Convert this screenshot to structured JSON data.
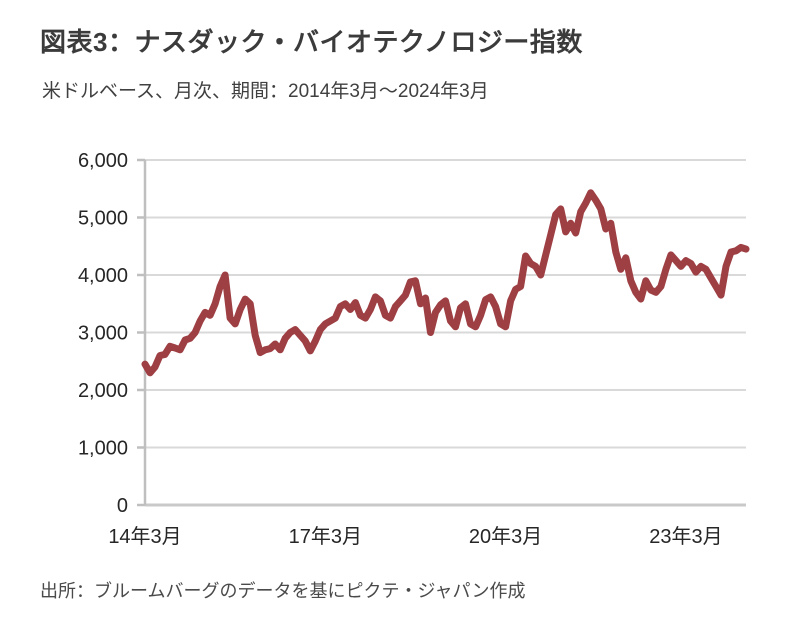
{
  "title": "図表3：ナスダック・バイオテクノロジー指数",
  "subtitle": "米ドルベース、月次、期間：2014年3月～2024年3月",
  "source": "出所：ブルームバーグのデータを基にピクテ・ジャパン作成",
  "chart_data": {
    "type": "line",
    "title": "ナスダック・バイオテクノロジー指数",
    "series_name": "ナスダック・バイオテクノロジー指数（米ドルベース）",
    "x_start": "2014-03",
    "x_end": "2024-03",
    "frequency": "monthly",
    "ylim": [
      0,
      6000
    ],
    "y_ticks": [
      0,
      1000,
      2000,
      3000,
      4000,
      5000,
      6000
    ],
    "y_tick_labels": [
      "0",
      "1,000",
      "2,000",
      "3,000",
      "4,000",
      "5,000",
      "6,000"
    ],
    "x_tick_months": [
      0,
      36,
      72,
      108
    ],
    "x_tick_labels": [
      "14年3月",
      "17年3月",
      "20年3月",
      "23年3月"
    ],
    "grid_on": true,
    "legend": "none",
    "line_color": "#9e3f44",
    "grid_color": "#d9d9d9",
    "axis_color": "#bfbfbf",
    "baseline_color": "#c9c9c9",
    "values": [
      2450,
      2300,
      2400,
      2600,
      2620,
      2760,
      2730,
      2700,
      2870,
      2900,
      3000,
      3200,
      3350,
      3300,
      3500,
      3800,
      4000,
      3250,
      3150,
      3400,
      3580,
      3500,
      2950,
      2650,
      2700,
      2720,
      2800,
      2700,
      2900,
      3000,
      3050,
      2950,
      2850,
      2680,
      2850,
      3050,
      3150,
      3200,
      3250,
      3450,
      3500,
      3400,
      3520,
      3300,
      3250,
      3400,
      3620,
      3550,
      3300,
      3250,
      3450,
      3550,
      3650,
      3880,
      3900,
      3500,
      3600,
      3000,
      3350,
      3480,
      3550,
      3200,
      3100,
      3430,
      3500,
      3150,
      3100,
      3300,
      3570,
      3620,
      3450,
      3150,
      3100,
      3550,
      3750,
      3800,
      4330,
      4200,
      4150,
      4000,
      4350,
      4700,
      5050,
      5150,
      4750,
      4900,
      4730,
      5100,
      5250,
      5430,
      5300,
      5150,
      4800,
      4900,
      4400,
      4100,
      4300,
      3900,
      3700,
      3580,
      3900,
      3740,
      3700,
      3800,
      4100,
      4350,
      4250,
      4150,
      4250,
      4200,
      4050,
      4150,
      4100,
      3950,
      3800,
      3650,
      4150,
      4400,
      4420,
      4480,
      4450
    ]
  }
}
